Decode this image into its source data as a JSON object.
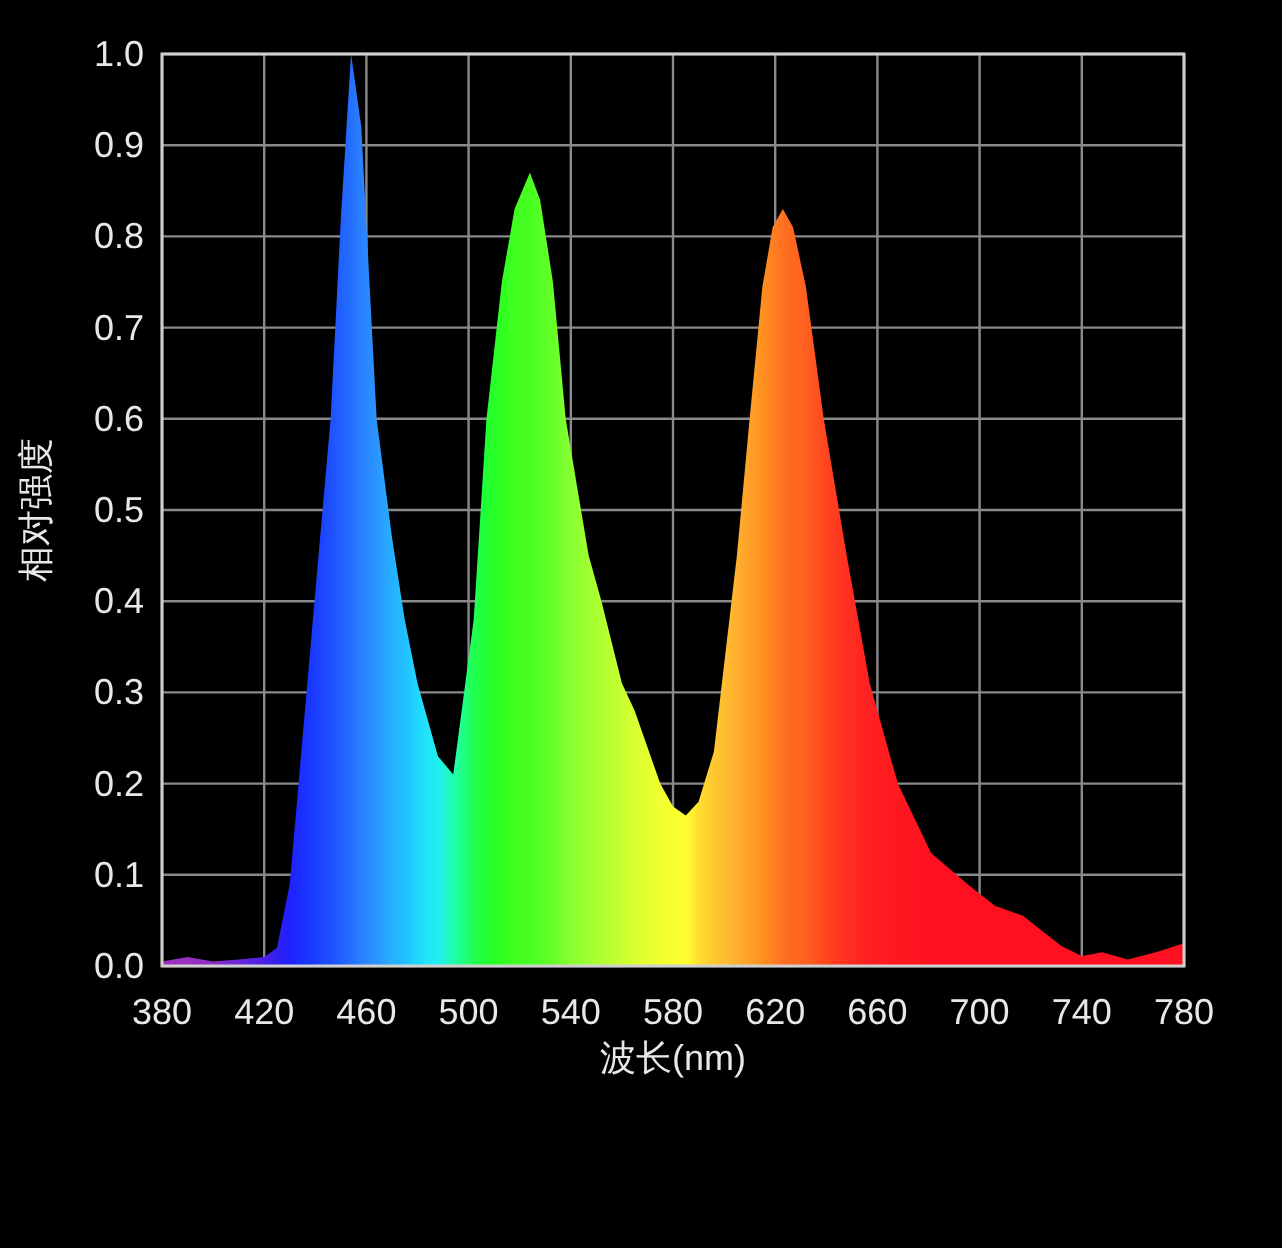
{
  "chart_data": {
    "type": "area",
    "xlabel": "波长(nm)",
    "ylabel": "相对强度",
    "xlim": [
      380,
      780
    ],
    "ylim": [
      0,
      1
    ],
    "xticks": [
      380,
      420,
      460,
      500,
      540,
      580,
      620,
      660,
      700,
      740,
      780
    ],
    "yticks": [
      {
        "value": 0,
        "label": "0.0"
      },
      0.1,
      0.2,
      0.3,
      0.4,
      0.5,
      0.6,
      0.7,
      0.8,
      0.9,
      {
        "value": 1,
        "label": "1.0"
      }
    ],
    "grid": true,
    "x": [
      380,
      390,
      400,
      410,
      420,
      425,
      430,
      435,
      440,
      446,
      450,
      454,
      458,
      464,
      470,
      475,
      480,
      488,
      494,
      502,
      507,
      513,
      518,
      524,
      528,
      533,
      538,
      547,
      552,
      560,
      565,
      575,
      580,
      585,
      590,
      596,
      605,
      610,
      615,
      619,
      623,
      627,
      632,
      639,
      648,
      657,
      668,
      681,
      696,
      706,
      717,
      722,
      732,
      740,
      748,
      758,
      769,
      780
    ],
    "series": [
      {
        "values": [
          0.005,
          0.01,
          0.005,
          0.007,
          0.01,
          0.02,
          0.09,
          0.25,
          0.41,
          0.6,
          0.82,
          1.0,
          0.92,
          0.6,
          0.47,
          0.38,
          0.31,
          0.23,
          0.21,
          0.38,
          0.6,
          0.75,
          0.83,
          0.87,
          0.84,
          0.75,
          0.6,
          0.45,
          0.4,
          0.31,
          0.28,
          0.2,
          0.175,
          0.165,
          0.18,
          0.235,
          0.45,
          0.6,
          0.745,
          0.81,
          0.83,
          0.81,
          0.745,
          0.6,
          0.45,
          0.31,
          0.2,
          0.124,
          0.088,
          0.066,
          0.055,
          0.044,
          0.022,
          0.011,
          0.015,
          0.007,
          0.015,
          0.025
        ],
        "colors": [
          "#9b30c0",
          "#9b30c0",
          "#8a2cc8",
          "#6a28d8",
          "#4a20e8",
          "#3020f0",
          "#2020ff",
          "#1a30ff",
          "#1a3cff",
          "#1e50ff",
          "#2060ff",
          "#2470ff",
          "#2a80ff",
          "#2a95ff",
          "#25b0ff",
          "#20c0ff",
          "#20d8ff",
          "#20f0f0",
          "#20ffb0",
          "#20ff50",
          "#20ff30",
          "#30ff20",
          "#40ff20",
          "#48ff20",
          "#55ff25",
          "#65ff28",
          "#80ff30",
          "#a0ff30",
          "#b0ff30",
          "#c8ff30",
          "#d8ff30",
          "#f0ff30",
          "#f8ff30",
          "#ffff30",
          "#ffe030",
          "#ffc830",
          "#ffb030",
          "#ffa028",
          "#ff9020",
          "#ff8020",
          "#ff7020",
          "#ff6820",
          "#ff6020",
          "#ff4820",
          "#ff3020",
          "#ff2020",
          "#ff1820",
          "#ff1020",
          "#ff1020",
          "#ff1020",
          "#ff1020",
          "#ff1020",
          "#ff1020",
          "#ff1020",
          "#ff1020",
          "#ff1020",
          "#ff1020",
          "#ff1020"
        ]
      }
    ]
  }
}
